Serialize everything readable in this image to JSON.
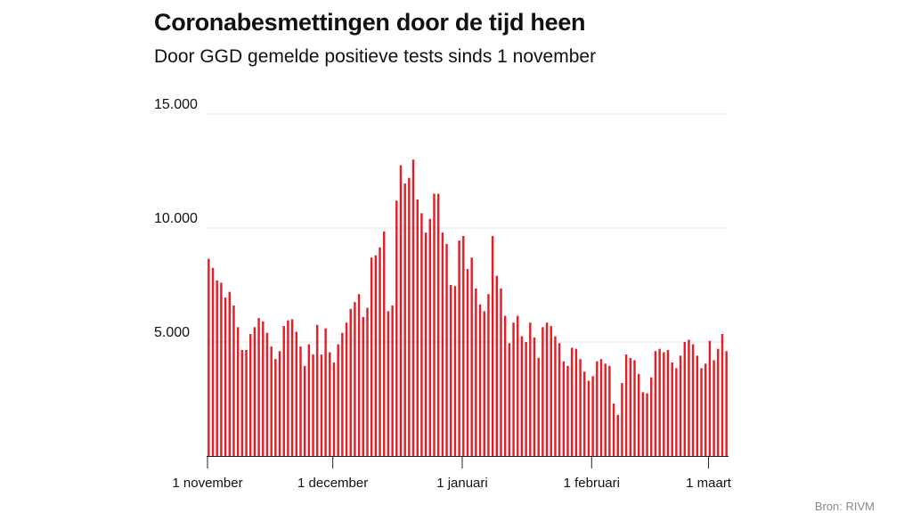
{
  "header": {
    "title": "Coronabesmettingen door de tijd heen",
    "subtitle": "Door GGD gemelde positieve tests sinds 1 november"
  },
  "footer": {
    "source": "Bron: RIVM"
  },
  "colors": {
    "bar": "#e41e26",
    "grid": "#e6e6e6",
    "axis": "#222222",
    "text": "#111111",
    "source": "#8a8a8a"
  },
  "chart_data": {
    "type": "bar",
    "title": "Coronabesmettingen door de tijd heen",
    "subtitle": "Door GGD gemelde positieve tests sinds 1 november",
    "xlabel": "",
    "ylabel": "",
    "ylim": [
      0,
      15000
    ],
    "yticks": [
      {
        "value": 5000,
        "label": "5.000"
      },
      {
        "value": 10000,
        "label": "10.000"
      },
      {
        "value": 15000,
        "label": "15.000"
      }
    ],
    "xticks": [
      {
        "index": 0,
        "label": "1 november"
      },
      {
        "index": 30,
        "label": "1 december"
      },
      {
        "index": 61,
        "label": "1 januari"
      },
      {
        "index": 92,
        "label": "1 februari"
      },
      {
        "index": 120,
        "label": "1 maart"
      }
    ],
    "grid": true,
    "x_start": "1 november",
    "values": [
      8650,
      8250,
      7700,
      7600,
      6950,
      7200,
      6600,
      5650,
      4650,
      4650,
      5350,
      5650,
      6050,
      5900,
      5400,
      4800,
      4250,
      4600,
      5700,
      5950,
      6000,
      5450,
      4800,
      3950,
      4900,
      4450,
      5750,
      4450,
      5600,
      4550,
      4100,
      4900,
      5400,
      5850,
      6450,
      6750,
      7100,
      6100,
      6500,
      8700,
      8800,
      9150,
      9850,
      6350,
      6600,
      11200,
      12750,
      11950,
      12200,
      13000,
      11250,
      10650,
      9800,
      10400,
      11500,
      11500,
      9800,
      9300,
      7500,
      7450,
      9450,
      9650,
      8200,
      8700,
      7350,
      6650,
      6350,
      7100,
      9650,
      7900,
      7350,
      6150,
      4950,
      5850,
      6150,
      5250,
      5000,
      5850,
      5200,
      4300,
      5650,
      5850,
      5700,
      5250,
      4950,
      4150,
      3950,
      4750,
      4700,
      4250,
      3700,
      3300,
      3500,
      4150,
      4250,
      4050,
      3950,
      2300,
      1800,
      3200,
      4450,
      4300,
      4200,
      3600,
      2800,
      2750,
      3450,
      4600,
      4700,
      4550,
      4650,
      4100,
      3850,
      4400,
      5000,
      5100,
      4900,
      4400,
      3850,
      4050,
      5050,
      4200,
      4700,
      5350,
      4600
    ]
  }
}
